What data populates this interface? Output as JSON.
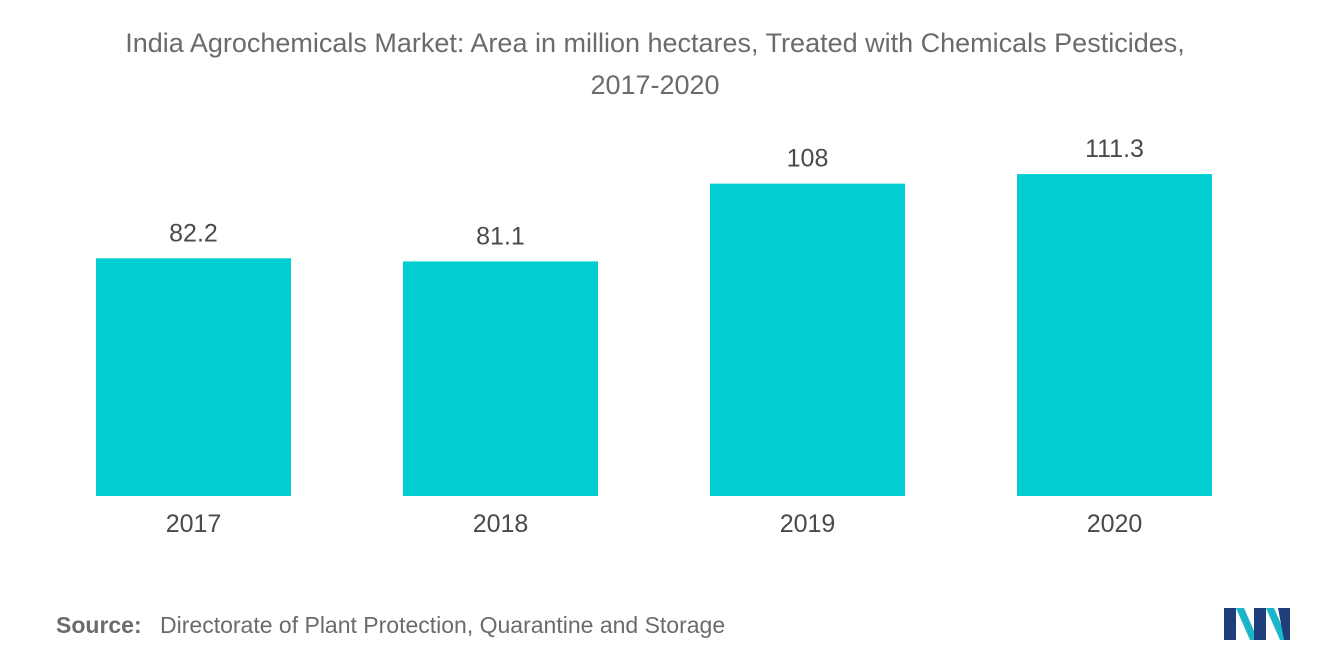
{
  "chart_data": {
    "type": "bar",
    "title_line1": "India Agrochemicals Market: Area in million hectares, Treated with Chemicals Pesticides,",
    "title_line2": "2017-2020",
    "categories": [
      "2017",
      "2018",
      "2019",
      "2020"
    ],
    "values": [
      82.2,
      81.1,
      108,
      111.3
    ],
    "value_labels": [
      "82.2",
      "81.1",
      "108",
      "111.3"
    ],
    "xlabel": "",
    "ylabel": "",
    "ylim": [
      0,
      130
    ],
    "grid": false,
    "bar_color": "#00CED1",
    "label_color": "#4a4a4a"
  },
  "footer": {
    "source_label": "Source:",
    "source_text": "Directorate of Plant Protection, Quarantine and Storage"
  },
  "logo": {
    "icon": "mordor-intelligence-logo-icon",
    "colors": [
      "#1f3f7a",
      "#1ab5c8"
    ]
  }
}
